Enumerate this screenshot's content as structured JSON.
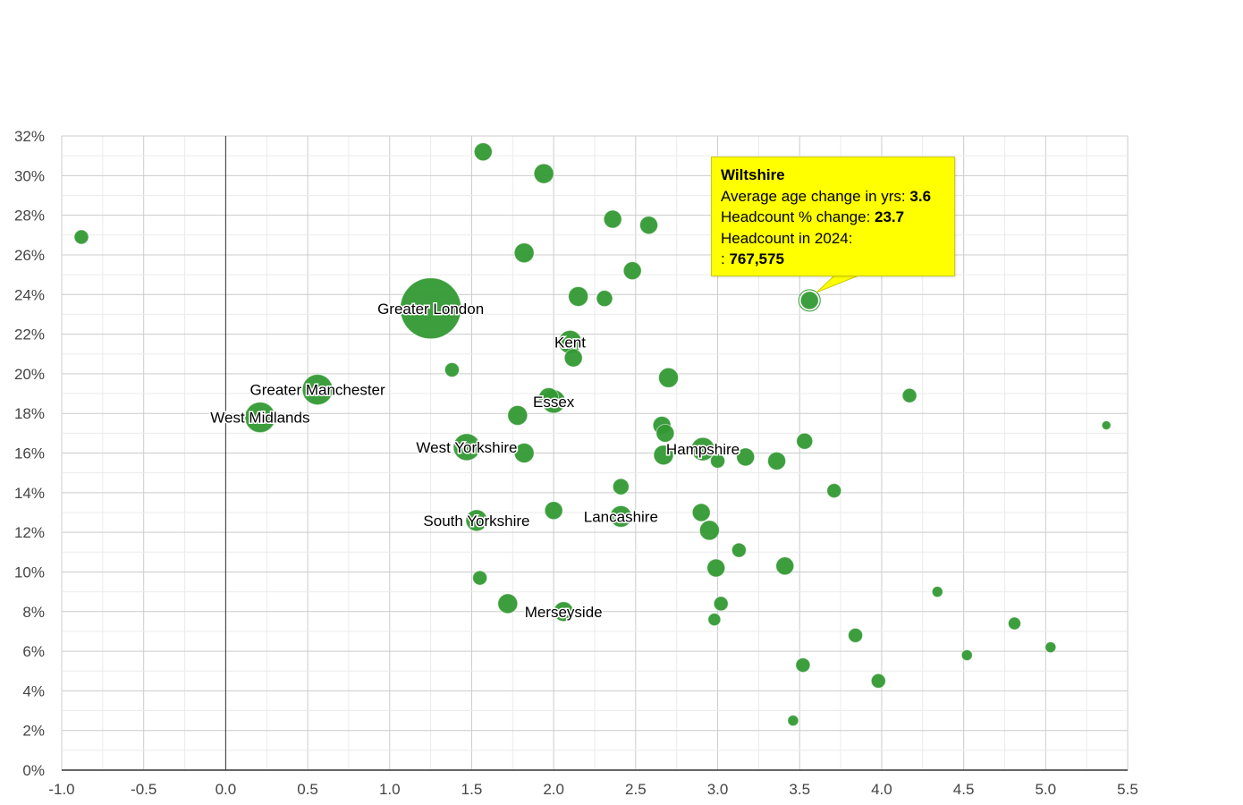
{
  "chart_data": {
    "type": "scatter",
    "subtype": "bubble",
    "title": "",
    "xlabel": "Average age change in yrs",
    "ylabel": "Headcount % change",
    "xlim": [
      -1.0,
      5.5
    ],
    "ylim": [
      0,
      32
    ],
    "x_ticks": [
      "-1.0",
      "-0.5",
      "0.0",
      "0.5",
      "1.0",
      "1.5",
      "2.0",
      "2.5",
      "3.0",
      "3.5",
      "4.0",
      "4.5",
      "5.0",
      "5.5"
    ],
    "y_ticks": [
      "0%",
      "2%",
      "4%",
      "6%",
      "8%",
      "10%",
      "12%",
      "14%",
      "16%",
      "18%",
      "20%",
      "22%",
      "24%",
      "26%",
      "28%",
      "30%",
      "32%"
    ],
    "grid": true,
    "bubble_color": "#339933",
    "points": [
      {
        "label": "Greater London",
        "x": 1.25,
        "y": 23.3,
        "r": 34,
        "show_label": true
      },
      {
        "label": "Greater Manchester",
        "x": 0.56,
        "y": 19.2,
        "r": 17,
        "show_label": true
      },
      {
        "label": "West Midlands",
        "x": 0.21,
        "y": 17.8,
        "r": 17,
        "show_label": true
      },
      {
        "label": "West Yorkshire",
        "x": 1.47,
        "y": 16.3,
        "r": 15,
        "show_label": true
      },
      {
        "label": "South Yorkshire",
        "x": 1.53,
        "y": 12.6,
        "r": 12,
        "show_label": true
      },
      {
        "label": "Kent",
        "x": 2.1,
        "y": 21.6,
        "r": 13,
        "show_label": true
      },
      {
        "label": "Essex",
        "x": 2.0,
        "y": 18.6,
        "r": 13,
        "show_label": true
      },
      {
        "label": "Hampshire",
        "x": 2.91,
        "y": 16.2,
        "r": 13,
        "show_label": true
      },
      {
        "label": "Lancashire",
        "x": 2.41,
        "y": 12.8,
        "r": 12,
        "show_label": true
      },
      {
        "label": "Merseyside",
        "x": 2.06,
        "y": 8.0,
        "r": 11,
        "show_label": true
      },
      {
        "label": "Wiltshire",
        "x": 3.56,
        "y": 23.7,
        "r": 10,
        "show_label": false,
        "highlighted": true
      },
      {
        "label": "",
        "x": -0.88,
        "y": 26.9,
        "r": 8
      },
      {
        "label": "",
        "x": 1.57,
        "y": 31.2,
        "r": 10
      },
      {
        "label": "",
        "x": 1.94,
        "y": 30.1,
        "r": 11
      },
      {
        "label": "",
        "x": 2.36,
        "y": 27.8,
        "r": 10
      },
      {
        "label": "",
        "x": 2.58,
        "y": 27.5,
        "r": 10
      },
      {
        "label": "",
        "x": 1.82,
        "y": 26.1,
        "r": 11
      },
      {
        "label": "",
        "x": 2.48,
        "y": 25.2,
        "r": 10
      },
      {
        "label": "",
        "x": 2.15,
        "y": 23.9,
        "r": 11
      },
      {
        "label": "",
        "x": 2.31,
        "y": 23.8,
        "r": 9
      },
      {
        "label": "",
        "x": 2.12,
        "y": 20.8,
        "r": 10
      },
      {
        "label": "",
        "x": 1.38,
        "y": 20.2,
        "r": 8
      },
      {
        "label": "",
        "x": 2.7,
        "y": 19.8,
        "r": 11
      },
      {
        "label": "",
        "x": 1.97,
        "y": 18.8,
        "r": 11
      },
      {
        "label": "",
        "x": 1.78,
        "y": 17.9,
        "r": 11
      },
      {
        "label": "",
        "x": 1.82,
        "y": 16.0,
        "r": 11
      },
      {
        "label": "",
        "x": 2.66,
        "y": 17.4,
        "r": 10
      },
      {
        "label": "",
        "x": 2.68,
        "y": 17.0,
        "r": 10
      },
      {
        "label": "",
        "x": 2.67,
        "y": 15.9,
        "r": 11
      },
      {
        "label": "",
        "x": 3.0,
        "y": 15.6,
        "r": 8
      },
      {
        "label": "",
        "x": 3.17,
        "y": 15.8,
        "r": 10
      },
      {
        "label": "",
        "x": 3.36,
        "y": 15.6,
        "r": 10
      },
      {
        "label": "",
        "x": 3.53,
        "y": 16.6,
        "r": 9
      },
      {
        "label": "",
        "x": 4.17,
        "y": 18.9,
        "r": 8
      },
      {
        "label": "",
        "x": 5.37,
        "y": 17.4,
        "r": 5
      },
      {
        "label": "",
        "x": 2.41,
        "y": 14.3,
        "r": 9
      },
      {
        "label": "",
        "x": 3.71,
        "y": 14.1,
        "r": 8
      },
      {
        "label": "",
        "x": 2.0,
        "y": 13.1,
        "r": 10
      },
      {
        "label": "",
        "x": 2.9,
        "y": 13.0,
        "r": 10
      },
      {
        "label": "",
        "x": 2.95,
        "y": 12.1,
        "r": 11
      },
      {
        "label": "",
        "x": 3.13,
        "y": 11.1,
        "r": 8
      },
      {
        "label": "",
        "x": 2.99,
        "y": 10.2,
        "r": 10
      },
      {
        "label": "",
        "x": 3.41,
        "y": 10.3,
        "r": 10
      },
      {
        "label": "",
        "x": 1.55,
        "y": 9.7,
        "r": 8
      },
      {
        "label": "",
        "x": 1.72,
        "y": 8.4,
        "r": 11
      },
      {
        "label": "",
        "x": 3.02,
        "y": 8.4,
        "r": 8
      },
      {
        "label": "",
        "x": 2.98,
        "y": 7.6,
        "r": 7
      },
      {
        "label": "",
        "x": 4.34,
        "y": 9.0,
        "r": 6
      },
      {
        "label": "",
        "x": 4.81,
        "y": 7.4,
        "r": 7
      },
      {
        "label": "",
        "x": 3.84,
        "y": 6.8,
        "r": 8
      },
      {
        "label": "",
        "x": 5.03,
        "y": 6.2,
        "r": 6
      },
      {
        "label": "",
        "x": 4.52,
        "y": 5.8,
        "r": 6
      },
      {
        "label": "",
        "x": 3.52,
        "y": 5.3,
        "r": 8
      },
      {
        "label": "",
        "x": 3.98,
        "y": 4.5,
        "r": 8
      },
      {
        "label": "",
        "x": 3.46,
        "y": 2.5,
        "r": 6
      }
    ]
  },
  "tooltip": {
    "title": "Wiltshire",
    "line1_label": "Average age change in yrs: ",
    "line1_value": "3.6",
    "line2_label": "Headcount % change: ",
    "line2_value": "23.7",
    "line3_label": "Headcount in 2024:",
    "line4_prefix": ": ",
    "line4_value": "767,575"
  }
}
